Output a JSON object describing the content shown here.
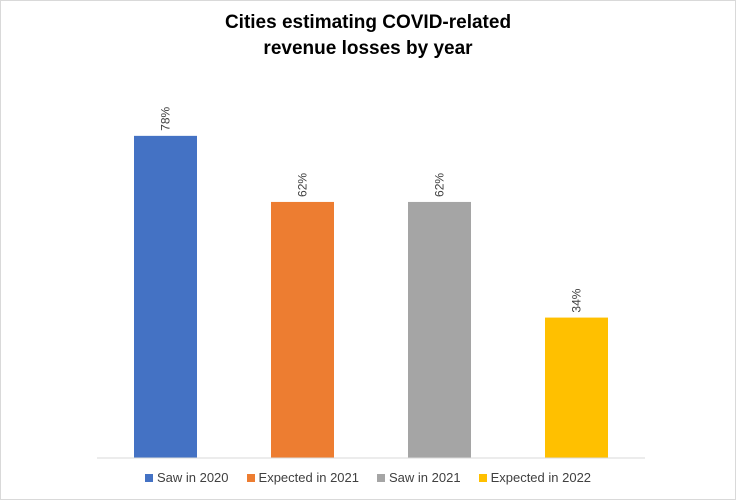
{
  "chart_data": {
    "type": "bar",
    "title": "Cities estimating COVID-related revenue losses by year",
    "title_lines": [
      "Cities estimating COVID-related",
      "revenue losses by year"
    ],
    "categories": [
      "Saw in 2020",
      "Expected in 2021",
      "Saw in 2021",
      "Expected in 2022"
    ],
    "values": [
      78,
      62,
      62,
      34
    ],
    "value_labels": [
      "78%",
      "62%",
      "62%",
      "34%"
    ],
    "colors": [
      "#4472C4",
      "#ED7D31",
      "#A5A5A5",
      "#FFC000"
    ],
    "ylim": [
      0,
      100
    ],
    "grid": false,
    "legend_position": "bottom",
    "xlabel": "",
    "ylabel": ""
  }
}
